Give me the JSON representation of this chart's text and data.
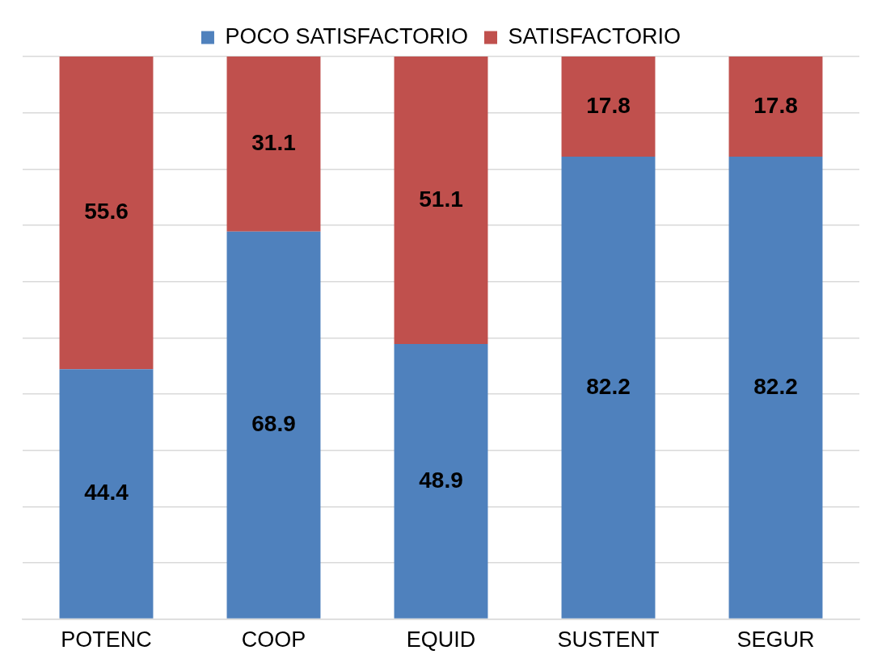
{
  "chart_data": {
    "type": "bar",
    "stacked": true,
    "categories": [
      "POTENC",
      "COOP",
      "EQUID",
      "SUSTENT",
      "SEGUR"
    ],
    "series": [
      {
        "name": "POCO SATISFACTORIO",
        "color": "#4f81bd",
        "values": [
          44.4,
          68.9,
          48.9,
          82.2,
          82.2
        ]
      },
      {
        "name": "SATISFACTORIO",
        "color": "#c0504d",
        "values": [
          55.6,
          31.1,
          51.1,
          17.8,
          17.8
        ]
      }
    ],
    "ylim": [
      0,
      100
    ],
    "yticks": [
      {
        "value": 0,
        "label": null
      },
      {
        "value": 10,
        "label": null
      },
      {
        "value": 20,
        "label": null
      },
      {
        "value": 30,
        "label": null
      },
      {
        "value": 40,
        "label": null
      },
      {
        "value": 50,
        "label": null
      },
      {
        "value": 60,
        "label": null
      },
      {
        "value": 70,
        "label": null
      },
      {
        "value": 80,
        "label": null
      },
      {
        "value": 90,
        "label": null
      },
      {
        "value": 100,
        "label": null
      }
    ],
    "tick_labels": "x",
    "grid": "y",
    "legend": "top",
    "data_labels": true
  }
}
